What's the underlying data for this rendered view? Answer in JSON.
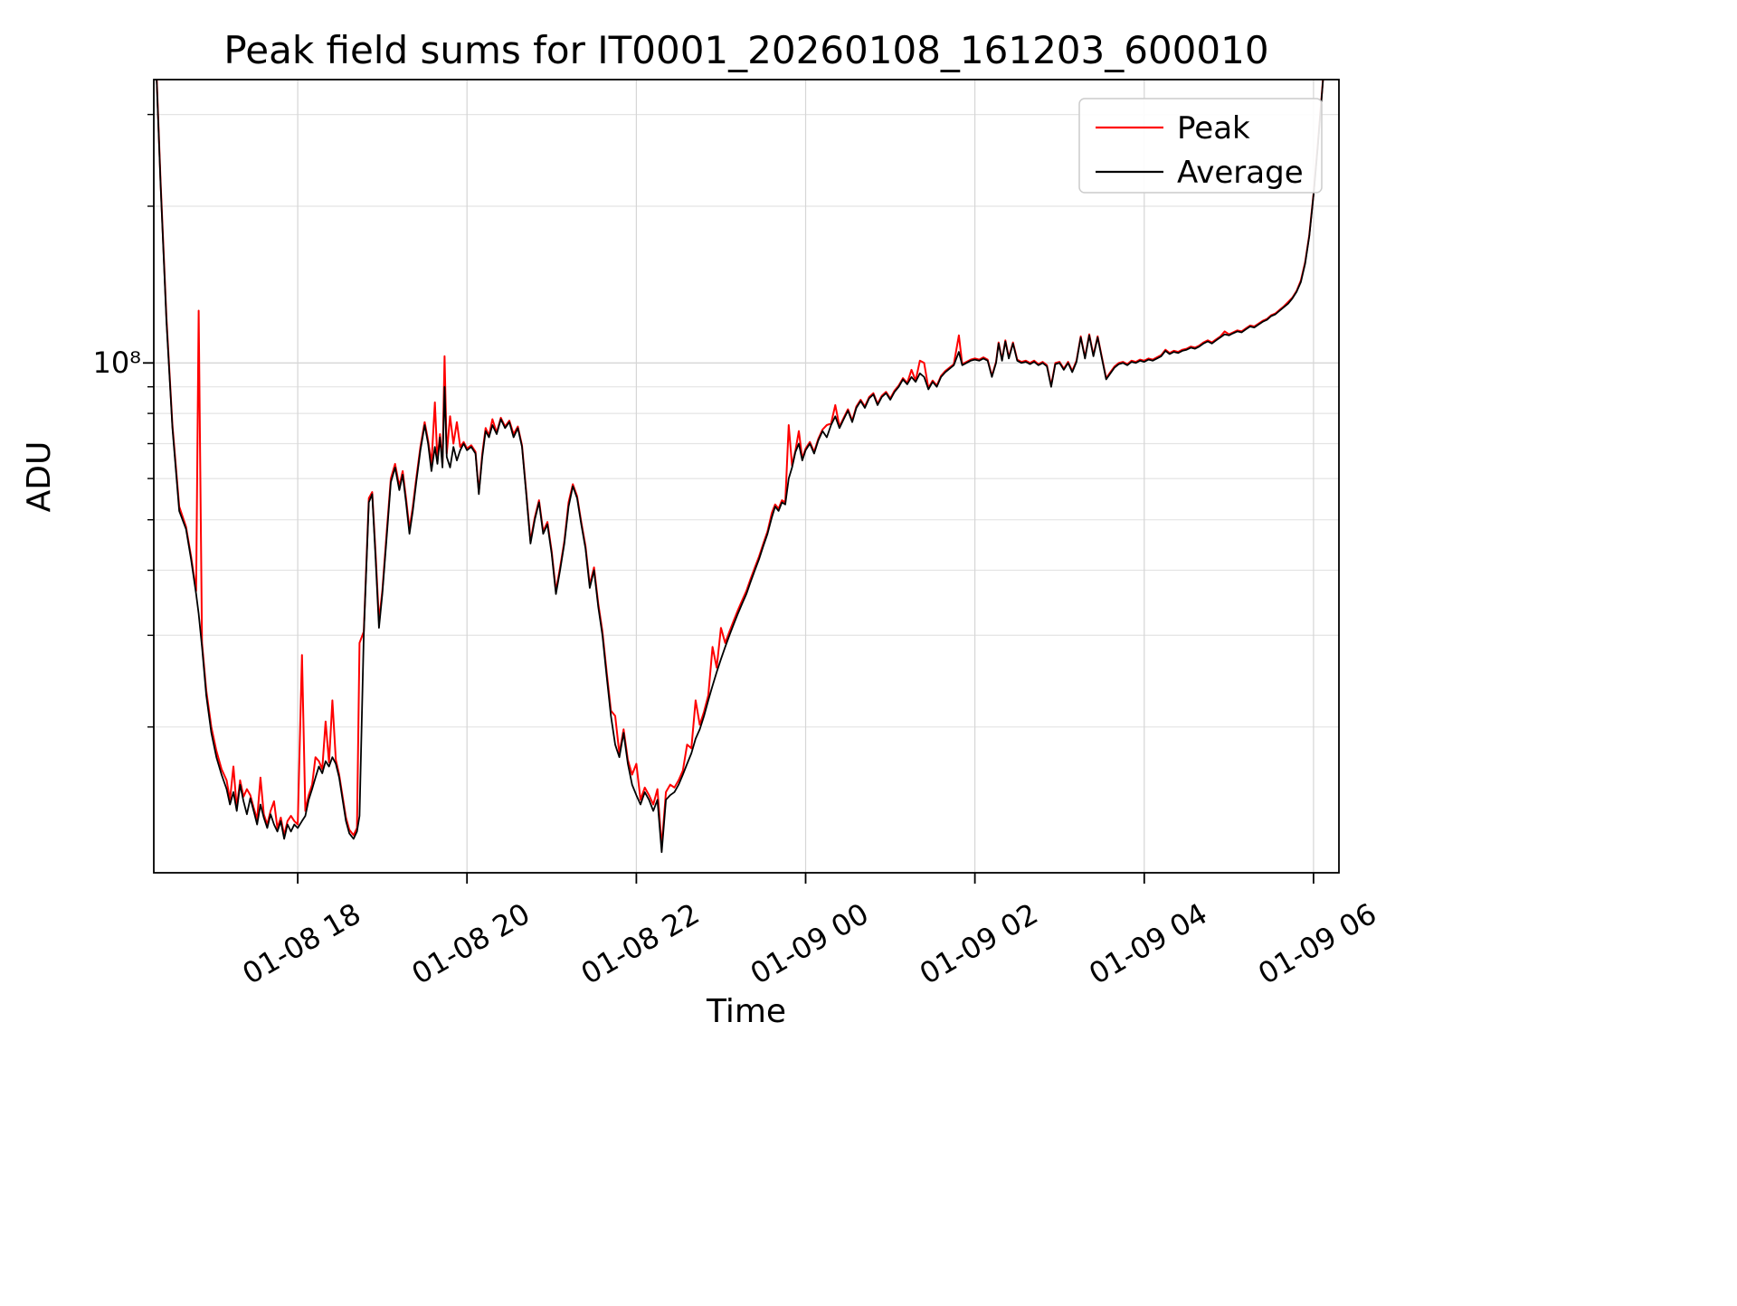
{
  "page": {
    "background": "#ffffff"
  },
  "chart_data": {
    "type": "line",
    "title": "Peak field sums for IT0001_20260108_161203_600010",
    "xlabel": "Time",
    "ylabel": "ADU",
    "yscale": "log",
    "ylim": [
      10500000.0,
      350000000.0
    ],
    "xlim_hours": [
      16.3,
      30.3
    ],
    "xticks": [
      {
        "hours": 18,
        "label": "01-08 18"
      },
      {
        "hours": 20,
        "label": "01-08 20"
      },
      {
        "hours": 22,
        "label": "01-08 22"
      },
      {
        "hours": 24,
        "label": "01-09 00"
      },
      {
        "hours": 26,
        "label": "01-09 02"
      },
      {
        "hours": 28,
        "label": "01-09 04"
      },
      {
        "hours": 30,
        "label": "01-09 06"
      }
    ],
    "ytick_labels": [
      {
        "value": 100000000.0,
        "label": "10⁸"
      }
    ],
    "legend": [
      "Peak",
      "Average"
    ],
    "legend_position": "upper-right",
    "grid": true,
    "colors": {
      "peak": "#ff0000",
      "average": "#000000",
      "grid_minor": "#e4e4e4",
      "grid_major": "#d6d6d6",
      "spine": "#000000"
    },
    "unit_scale": 10000000.0,
    "columns": [
      "t_hours",
      "average",
      "peak"
    ],
    "points": [
      [
        16.32,
        40,
        40.5
      ],
      [
        16.38,
        22,
        22.3
      ],
      [
        16.45,
        12,
        12.2
      ],
      [
        16.52,
        7.5,
        7.6
      ],
      [
        16.6,
        5.2,
        5.3
      ],
      [
        16.68,
        4.8,
        4.85
      ],
      [
        16.74,
        4.2,
        4.25
      ],
      [
        16.8,
        3.6,
        3.65
      ],
      [
        16.83,
        3.3,
        12.6
      ],
      [
        16.87,
        2.85,
        2.9
      ],
      [
        16.92,
        2.3,
        2.35
      ],
      [
        16.98,
        1.95,
        2.0
      ],
      [
        17.04,
        1.75,
        1.8
      ],
      [
        17.1,
        1.62,
        1.66
      ],
      [
        17.16,
        1.52,
        1.58
      ],
      [
        17.2,
        1.42,
        1.45
      ],
      [
        17.24,
        1.5,
        1.68
      ],
      [
        17.28,
        1.38,
        1.4
      ],
      [
        17.32,
        1.55,
        1.58
      ],
      [
        17.36,
        1.44,
        1.47
      ],
      [
        17.4,
        1.36,
        1.52
      ],
      [
        17.44,
        1.46,
        1.48
      ],
      [
        17.48,
        1.38,
        1.4
      ],
      [
        17.52,
        1.3,
        1.33
      ],
      [
        17.56,
        1.42,
        1.6
      ],
      [
        17.6,
        1.34,
        1.36
      ],
      [
        17.64,
        1.28,
        1.3
      ],
      [
        17.68,
        1.36,
        1.38
      ],
      [
        17.72,
        1.3,
        1.44
      ],
      [
        17.76,
        1.26,
        1.28
      ],
      [
        17.8,
        1.32,
        1.34
      ],
      [
        17.84,
        1.22,
        1.24
      ],
      [
        17.88,
        1.3,
        1.32
      ],
      [
        17.92,
        1.26,
        1.35
      ],
      [
        17.96,
        1.3,
        1.32
      ],
      [
        18.0,
        1.28,
        1.3
      ],
      [
        18.05,
        1.32,
        2.75
      ],
      [
        18.09,
        1.35,
        1.38
      ],
      [
        18.13,
        1.45,
        1.48
      ],
      [
        18.17,
        1.52,
        1.55
      ],
      [
        18.21,
        1.6,
        1.75
      ],
      [
        18.25,
        1.68,
        1.72
      ],
      [
        18.29,
        1.63,
        1.66
      ],
      [
        18.33,
        1.72,
        2.05
      ],
      [
        18.37,
        1.68,
        1.71
      ],
      [
        18.41,
        1.75,
        2.25
      ],
      [
        18.45,
        1.7,
        1.73
      ],
      [
        18.49,
        1.6,
        1.62
      ],
      [
        18.53,
        1.45,
        1.47
      ],
      [
        18.57,
        1.32,
        1.34
      ],
      [
        18.61,
        1.25,
        1.27
      ],
      [
        18.66,
        1.22,
        1.24
      ],
      [
        18.7,
        1.26,
        1.28
      ],
      [
        18.73,
        1.35,
        2.9
      ],
      [
        18.78,
        3.0,
        3.05
      ],
      [
        18.84,
        5.4,
        5.5
      ],
      [
        18.88,
        5.6,
        5.65
      ],
      [
        18.92,
        4.2,
        4.3
      ],
      [
        18.96,
        3.1,
        3.2
      ],
      [
        19.0,
        3.6,
        3.65
      ],
      [
        19.05,
        4.6,
        4.7
      ],
      [
        19.1,
        5.9,
        6.0
      ],
      [
        19.15,
        6.3,
        6.4
      ],
      [
        19.2,
        5.7,
        5.8
      ],
      [
        19.24,
        6.1,
        6.2
      ],
      [
        19.28,
        5.4,
        5.5
      ],
      [
        19.32,
        4.7,
        4.8
      ],
      [
        19.36,
        5.2,
        5.3
      ],
      [
        19.4,
        5.9,
        6.0
      ],
      [
        19.45,
        6.8,
        6.9
      ],
      [
        19.5,
        7.6,
        7.7
      ],
      [
        19.54,
        7.0,
        7.1
      ],
      [
        19.58,
        6.2,
        6.4
      ],
      [
        19.62,
        6.9,
        8.4
      ],
      [
        19.65,
        6.4,
        6.5
      ],
      [
        19.68,
        7.2,
        7.3
      ],
      [
        19.71,
        6.3,
        6.4
      ],
      [
        19.735,
        9.0,
        10.3
      ],
      [
        19.76,
        6.6,
        6.7
      ],
      [
        19.8,
        6.3,
        7.9
      ],
      [
        19.84,
        6.9,
        7.0
      ],
      [
        19.88,
        6.5,
        7.7
      ],
      [
        19.92,
        6.8,
        6.9
      ],
      [
        19.96,
        7.0,
        7.05
      ],
      [
        20.0,
        6.8,
        6.85
      ],
      [
        20.05,
        6.9,
        6.95
      ],
      [
        20.1,
        6.7,
        6.75
      ],
      [
        20.14,
        5.6,
        5.65
      ],
      [
        20.18,
        6.6,
        6.7
      ],
      [
        20.22,
        7.4,
        7.5
      ],
      [
        20.26,
        7.2,
        7.25
      ],
      [
        20.3,
        7.6,
        7.8
      ],
      [
        20.35,
        7.3,
        7.35
      ],
      [
        20.4,
        7.8,
        7.85
      ],
      [
        20.45,
        7.5,
        7.55
      ],
      [
        20.5,
        7.7,
        7.75
      ],
      [
        20.55,
        7.2,
        7.3
      ],
      [
        20.6,
        7.5,
        7.55
      ],
      [
        20.65,
        6.9,
        6.95
      ],
      [
        20.7,
        5.6,
        5.65
      ],
      [
        20.75,
        4.5,
        4.55
      ],
      [
        20.8,
        5.0,
        5.05
      ],
      [
        20.85,
        5.4,
        5.45
      ],
      [
        20.9,
        4.7,
        4.75
      ],
      [
        20.95,
        4.9,
        4.95
      ],
      [
        21.0,
        4.3,
        4.35
      ],
      [
        21.05,
        3.6,
        3.65
      ],
      [
        21.1,
        4.0,
        4.05
      ],
      [
        21.15,
        4.5,
        4.55
      ],
      [
        21.2,
        5.3,
        5.4
      ],
      [
        21.25,
        5.8,
        5.85
      ],
      [
        21.3,
        5.5,
        5.55
      ],
      [
        21.35,
        4.9,
        4.95
      ],
      [
        21.4,
        4.4,
        4.45
      ],
      [
        21.45,
        3.7,
        3.75
      ],
      [
        21.5,
        4.0,
        4.05
      ],
      [
        21.55,
        3.4,
        3.45
      ],
      [
        21.6,
        3.0,
        3.05
      ],
      [
        21.65,
        2.5,
        2.55
      ],
      [
        21.7,
        2.1,
        2.15
      ],
      [
        21.75,
        1.85,
        2.1
      ],
      [
        21.8,
        1.75,
        1.78
      ],
      [
        21.85,
        1.95,
        1.98
      ],
      [
        21.9,
        1.7,
        1.73
      ],
      [
        21.95,
        1.55,
        1.62
      ],
      [
        22.0,
        1.48,
        1.7
      ],
      [
        22.05,
        1.42,
        1.45
      ],
      [
        22.1,
        1.5,
        1.53
      ],
      [
        22.15,
        1.45,
        1.48
      ],
      [
        22.2,
        1.38,
        1.42
      ],
      [
        22.25,
        1.45,
        1.52
      ],
      [
        22.3,
        1.15,
        1.18
      ],
      [
        22.35,
        1.45,
        1.5
      ],
      [
        22.4,
        1.48,
        1.55
      ],
      [
        22.45,
        1.5,
        1.53
      ],
      [
        22.5,
        1.55,
        1.58
      ],
      [
        22.55,
        1.62,
        1.65
      ],
      [
        22.6,
        1.7,
        1.85
      ],
      [
        22.65,
        1.78,
        1.82
      ],
      [
        22.7,
        1.9,
        2.25
      ],
      [
        22.75,
        1.98,
        2.02
      ],
      [
        22.8,
        2.1,
        2.14
      ],
      [
        22.85,
        2.25,
        2.3
      ],
      [
        22.9,
        2.4,
        2.85
      ],
      [
        22.95,
        2.55,
        2.6
      ],
      [
        23.0,
        2.7,
        3.1
      ],
      [
        23.05,
        2.85,
        2.9
      ],
      [
        23.1,
        3.0,
        3.05
      ],
      [
        23.15,
        3.15,
        3.2
      ],
      [
        23.2,
        3.3,
        3.35
      ],
      [
        23.25,
        3.45,
        3.5
      ],
      [
        23.3,
        3.6,
        3.65
      ],
      [
        23.35,
        3.8,
        3.85
      ],
      [
        23.4,
        4.0,
        4.05
      ],
      [
        23.45,
        4.2,
        4.25
      ],
      [
        23.5,
        4.45,
        4.5
      ],
      [
        23.55,
        4.7,
        4.75
      ],
      [
        23.6,
        5.05,
        5.15
      ],
      [
        23.64,
        5.3,
        5.35
      ],
      [
        23.68,
        5.2,
        5.25
      ],
      [
        23.72,
        5.4,
        5.45
      ],
      [
        23.76,
        5.35,
        5.4
      ],
      [
        23.8,
        6.0,
        7.6
      ],
      [
        23.84,
        6.3,
        6.35
      ],
      [
        23.88,
        6.75,
        6.8
      ],
      [
        23.92,
        7.0,
        7.4
      ],
      [
        23.96,
        6.5,
        6.55
      ],
      [
        24.0,
        6.8,
        6.85
      ],
      [
        24.05,
        7.0,
        7.05
      ],
      [
        24.1,
        6.7,
        6.75
      ],
      [
        24.15,
        7.1,
        7.15
      ],
      [
        24.2,
        7.4,
        7.45
      ],
      [
        24.25,
        7.2,
        7.6
      ],
      [
        24.3,
        7.6,
        7.65
      ],
      [
        24.35,
        7.9,
        8.3
      ],
      [
        24.4,
        7.5,
        7.55
      ],
      [
        24.45,
        7.8,
        7.85
      ],
      [
        24.5,
        8.1,
        8.15
      ],
      [
        24.55,
        7.7,
        7.75
      ],
      [
        24.6,
        8.2,
        8.25
      ],
      [
        24.65,
        8.45,
        8.5
      ],
      [
        24.7,
        8.2,
        8.25
      ],
      [
        24.75,
        8.55,
        8.6
      ],
      [
        24.8,
        8.7,
        8.75
      ],
      [
        24.85,
        8.3,
        8.35
      ],
      [
        24.9,
        8.6,
        8.65
      ],
      [
        24.95,
        8.75,
        8.8
      ],
      [
        25.0,
        8.5,
        8.55
      ],
      [
        25.05,
        8.8,
        8.85
      ],
      [
        25.1,
        9.0,
        9.05
      ],
      [
        25.15,
        9.3,
        9.35
      ],
      [
        25.2,
        9.1,
        9.15
      ],
      [
        25.25,
        9.4,
        9.7
      ],
      [
        25.3,
        9.2,
        9.25
      ],
      [
        25.35,
        9.55,
        10.1
      ],
      [
        25.4,
        9.4,
        10.0
      ],
      [
        25.45,
        8.9,
        8.95
      ],
      [
        25.5,
        9.2,
        9.25
      ],
      [
        25.55,
        9.0,
        9.05
      ],
      [
        25.6,
        9.4,
        9.45
      ],
      [
        25.65,
        9.6,
        9.65
      ],
      [
        25.7,
        9.75,
        9.8
      ],
      [
        25.75,
        9.9,
        9.95
      ],
      [
        25.81,
        10.5,
        11.3
      ],
      [
        25.85,
        9.9,
        9.95
      ],
      [
        25.9,
        10.0,
        10.05
      ],
      [
        25.95,
        10.1,
        10.15
      ],
      [
        26.0,
        10.15,
        10.2
      ],
      [
        26.05,
        10.1,
        10.15
      ],
      [
        26.1,
        10.2,
        10.25
      ],
      [
        26.15,
        10.1,
        10.15
      ],
      [
        26.2,
        9.4,
        9.45
      ],
      [
        26.25,
        10.0,
        10.05
      ],
      [
        26.28,
        10.9,
        10.95
      ],
      [
        26.32,
        10.1,
        10.15
      ],
      [
        26.36,
        11.0,
        11.05
      ],
      [
        26.4,
        10.2,
        10.25
      ],
      [
        26.45,
        10.9,
        10.95
      ],
      [
        26.5,
        10.1,
        10.15
      ],
      [
        26.55,
        10.0,
        10.05
      ],
      [
        26.6,
        10.05,
        10.1
      ],
      [
        26.65,
        9.95,
        10.0
      ],
      [
        26.7,
        10.05,
        10.1
      ],
      [
        26.75,
        9.9,
        9.95
      ],
      [
        26.8,
        10.0,
        10.05
      ],
      [
        26.85,
        9.85,
        9.9
      ],
      [
        26.9,
        9.0,
        9.05
      ],
      [
        26.95,
        9.95,
        10.0
      ],
      [
        27.0,
        10.0,
        10.05
      ],
      [
        27.05,
        9.7,
        9.75
      ],
      [
        27.1,
        10.0,
        10.05
      ],
      [
        27.15,
        9.6,
        9.65
      ],
      [
        27.2,
        10.05,
        10.1
      ],
      [
        27.25,
        11.2,
        11.25
      ],
      [
        27.3,
        10.2,
        10.25
      ],
      [
        27.35,
        11.3,
        11.35
      ],
      [
        27.4,
        10.3,
        10.35
      ],
      [
        27.45,
        11.2,
        11.25
      ],
      [
        27.5,
        10.2,
        10.25
      ],
      [
        27.55,
        9.3,
        9.35
      ],
      [
        27.6,
        9.55,
        9.6
      ],
      [
        27.65,
        9.8,
        9.85
      ],
      [
        27.7,
        9.95,
        10.0
      ],
      [
        27.75,
        10.0,
        10.05
      ],
      [
        27.8,
        9.9,
        9.95
      ],
      [
        27.85,
        10.05,
        10.1
      ],
      [
        27.9,
        10.0,
        10.05
      ],
      [
        27.95,
        10.1,
        10.15
      ],
      [
        28.0,
        10.05,
        10.1
      ],
      [
        28.05,
        10.15,
        10.2
      ],
      [
        28.1,
        10.1,
        10.15
      ],
      [
        28.15,
        10.2,
        10.25
      ],
      [
        28.2,
        10.3,
        10.35
      ],
      [
        28.25,
        10.55,
        10.6
      ],
      [
        28.3,
        10.4,
        10.45
      ],
      [
        28.35,
        10.5,
        10.55
      ],
      [
        28.4,
        10.45,
        10.5
      ],
      [
        28.45,
        10.55,
        10.6
      ],
      [
        28.5,
        10.6,
        10.65
      ],
      [
        28.55,
        10.7,
        10.75
      ],
      [
        28.6,
        10.65,
        10.7
      ],
      [
        28.65,
        10.75,
        10.8
      ],
      [
        28.7,
        10.9,
        10.95
      ],
      [
        28.75,
        11.0,
        11.05
      ],
      [
        28.8,
        10.9,
        10.95
      ],
      [
        28.85,
        11.05,
        11.1
      ],
      [
        28.9,
        11.2,
        11.25
      ],
      [
        28.95,
        11.35,
        11.5
      ],
      [
        29.0,
        11.3,
        11.35
      ],
      [
        29.05,
        11.4,
        11.45
      ],
      [
        29.1,
        11.5,
        11.55
      ],
      [
        29.15,
        11.45,
        11.5
      ],
      [
        29.2,
        11.6,
        11.65
      ],
      [
        29.25,
        11.75,
        11.8
      ],
      [
        29.3,
        11.7,
        11.75
      ],
      [
        29.35,
        11.85,
        11.9
      ],
      [
        29.4,
        12.0,
        12.05
      ],
      [
        29.45,
        12.1,
        12.15
      ],
      [
        29.5,
        12.3,
        12.35
      ],
      [
        29.55,
        12.4,
        12.45
      ],
      [
        29.6,
        12.6,
        12.65
      ],
      [
        29.65,
        12.8,
        12.85
      ],
      [
        29.7,
        13.0,
        13.1
      ],
      [
        29.75,
        13.3,
        13.35
      ],
      [
        29.8,
        13.7,
        13.75
      ],
      [
        29.85,
        14.3,
        14.4
      ],
      [
        29.9,
        15.5,
        15.6
      ],
      [
        29.95,
        17.5,
        17.6
      ],
      [
        30.0,
        21.0,
        21.1
      ],
      [
        30.05,
        26.0,
        26.2
      ],
      [
        30.1,
        33.0,
        33.2
      ],
      [
        30.15,
        42.0,
        42.3
      ],
      [
        30.2,
        55.0,
        55.3
      ],
      [
        30.25,
        70.0,
        70.4
      ]
    ]
  }
}
